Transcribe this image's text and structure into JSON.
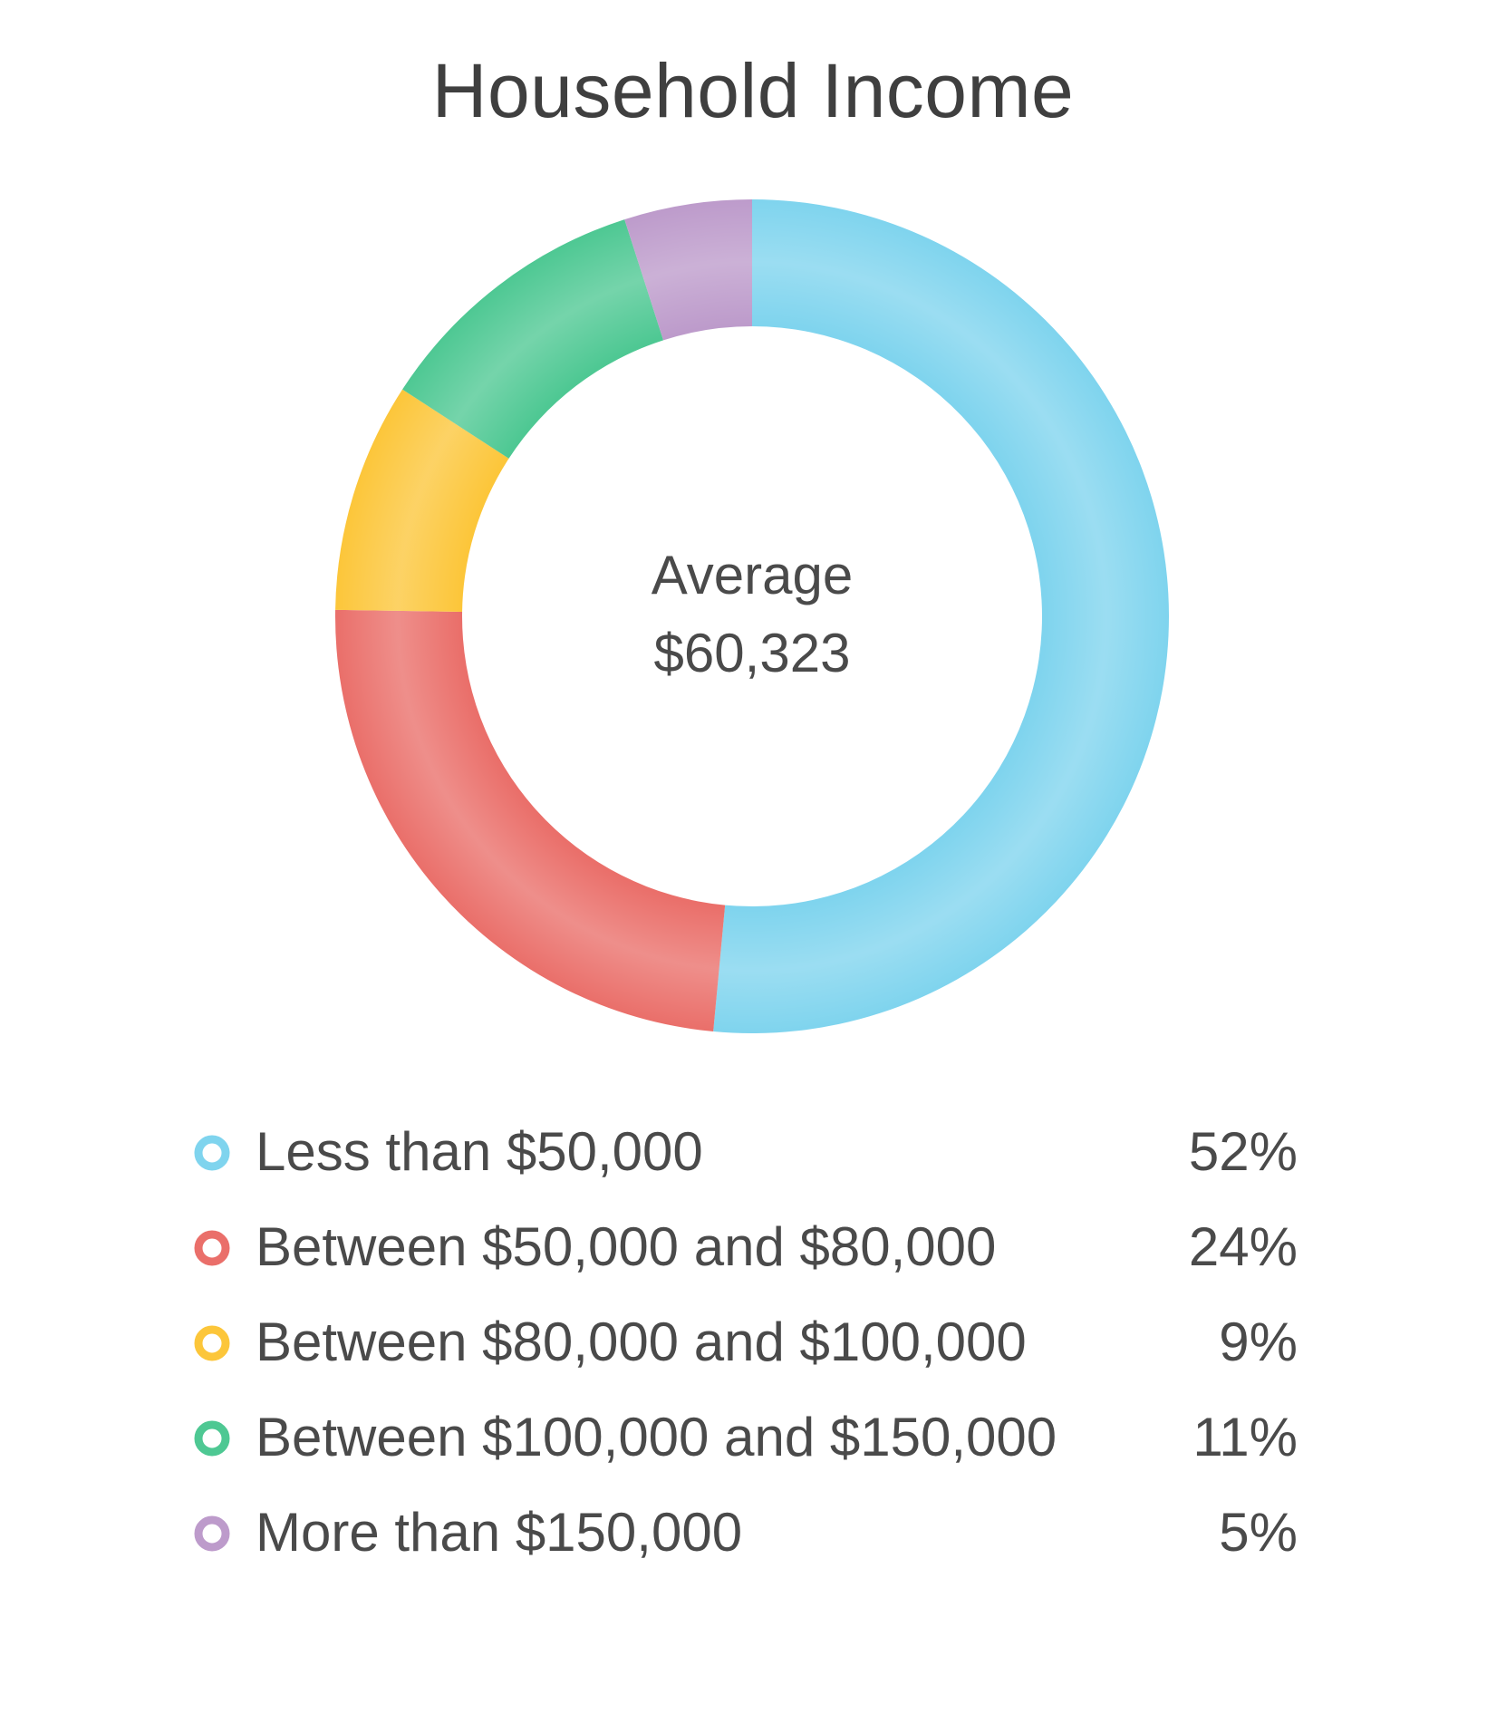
{
  "chart_data": {
    "type": "pie",
    "style": "donut",
    "title": "Household Income",
    "center_text": [
      "Average",
      "$60,323"
    ],
    "categories": [
      "Less than $50,000",
      "Between $50,000 and $80,000",
      "Between $80,000 and $100,000",
      "Between $100,000 and $150,000",
      "More than $150,000"
    ],
    "values": [
      52,
      24,
      9,
      11,
      5
    ],
    "value_labels": [
      "52%",
      "24%",
      "9%",
      "11%",
      "5%"
    ],
    "colors": [
      "#7fd4ee",
      "#ea6f6a",
      "#fcc63a",
      "#4ec893",
      "#bd9bcb"
    ],
    "legend_position": "bottom"
  }
}
